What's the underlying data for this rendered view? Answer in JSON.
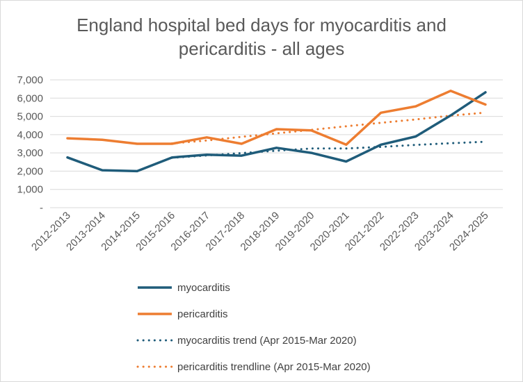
{
  "chart_data": {
    "type": "line",
    "title": "England hospital bed days for myocarditis and pericarditis - all ages",
    "title_lines": [
      "England hospital bed days for myocarditis and",
      "pericarditis - all ages"
    ],
    "xlabel": "",
    "ylabel": "",
    "ylim": [
      0,
      7000
    ],
    "y_ticks": [
      0,
      1000,
      2000,
      3000,
      4000,
      5000,
      6000,
      7000
    ],
    "y_tick_labels": [
      "-",
      "1,000",
      "2,000",
      "3,000",
      "4,000",
      "5,000",
      "6,000",
      "7,000"
    ],
    "grid": true,
    "legend_position": "bottom",
    "categories": [
      "2012-2013",
      "2013-2014",
      "2014-2015",
      "2015-2016",
      "2016-2017",
      "2017-2018",
      "2018-2019",
      "2019-2020",
      "2020-2021",
      "2021-2022",
      "2022-2023",
      "2023-2024",
      "2024-2025"
    ],
    "series": [
      {
        "name": "myocarditis",
        "style": "solid",
        "color": "#1f5c7a",
        "values": [
          2750,
          2050,
          2000,
          2750,
          2900,
          2850,
          3280,
          3000,
          2530,
          3450,
          3900,
          5050,
          6320
        ]
      },
      {
        "name": "pericarditis",
        "style": "solid",
        "color": "#ed7d31",
        "values": [
          3800,
          3720,
          3500,
          3500,
          3850,
          3500,
          4300,
          4230,
          3450,
          5200,
          5550,
          6400,
          5650
        ]
      },
      {
        "name": "myocarditis trend (Apr 2015-Mar 2020)",
        "style": "dotted",
        "color": "#1f5c7a",
        "start_index": 3,
        "values": [
          null,
          null,
          null,
          2730,
          2860,
          2990,
          3120,
          3240,
          3240,
          3330,
          3440,
          3530,
          3610
        ]
      },
      {
        "name": "pericarditis trendline (Apr 2015-Mar 2020)",
        "style": "dotted",
        "color": "#ed7d31",
        "start_index": 3,
        "values": [
          null,
          null,
          null,
          3520,
          3680,
          3880,
          4070,
          4260,
          4460,
          4650,
          4830,
          5040,
          5210
        ]
      }
    ]
  }
}
